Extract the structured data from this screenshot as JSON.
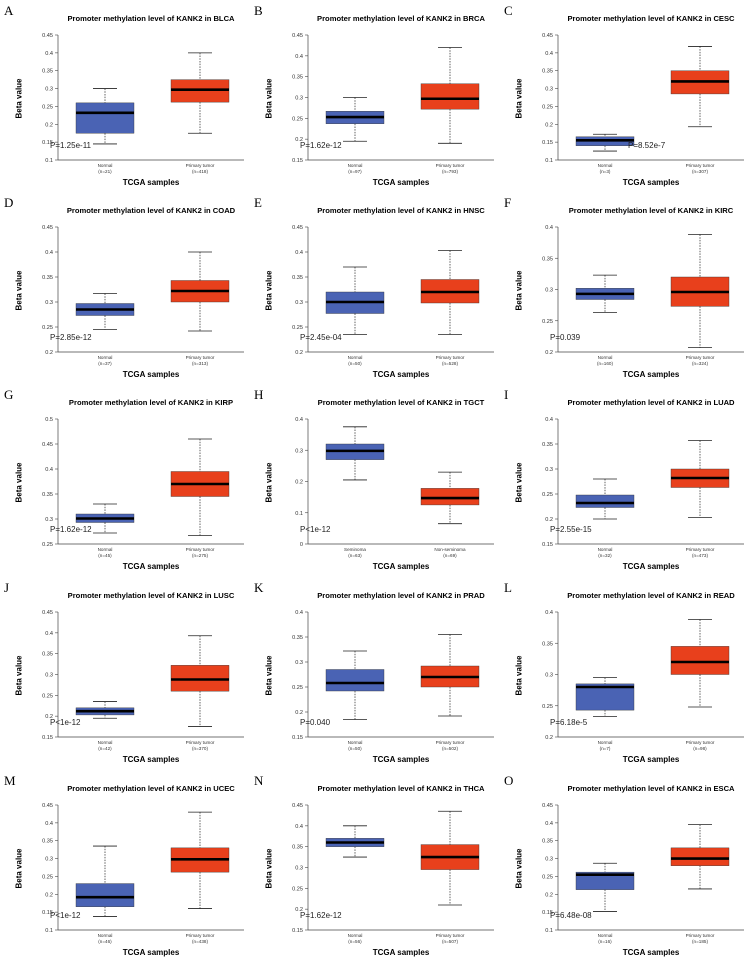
{
  "x_axis_label": "TCGA samples",
  "y_axis_label": "Beta value",
  "colors": {
    "normal": "#4a63b4",
    "tumor": "#e8401c",
    "median": "#000000"
  },
  "chart_data": [
    {
      "label": "A",
      "type": "boxplot",
      "title": "Promoter methylation level of KANK2 in BLCA",
      "ylim": [
        0.1,
        0.45
      ],
      "yticks": [
        "0.1",
        "0.15",
        "0.2",
        "0.25",
        "0.3",
        "0.35",
        "0.4",
        "0.45"
      ],
      "p_value": "P=1.25e-11",
      "groups": [
        {
          "name": "Normal",
          "n": "(n=21)",
          "min": 0.145,
          "q1": 0.175,
          "median": 0.232,
          "q3": 0.26,
          "max": 0.3
        },
        {
          "name": "Primary tumor",
          "n": "(n=418)",
          "min": 0.175,
          "q1": 0.262,
          "median": 0.297,
          "q3": 0.325,
          "max": 0.4
        }
      ]
    },
    {
      "label": "B",
      "type": "boxplot",
      "title": "Promoter methylation level of KANK2 in BRCA",
      "ylim": [
        0.15,
        0.45
      ],
      "yticks": [
        "0.15",
        "0.2",
        "0.25",
        "0.3",
        "0.35",
        "0.4",
        "0.45"
      ],
      "p_value": "P=1.62e-12",
      "groups": [
        {
          "name": "Normal",
          "n": "(n=97)",
          "min": 0.195,
          "q1": 0.237,
          "median": 0.253,
          "q3": 0.267,
          "max": 0.3
        },
        {
          "name": "Primary tumor",
          "n": "(n=793)",
          "min": 0.19,
          "q1": 0.272,
          "median": 0.297,
          "q3": 0.333,
          "max": 0.42
        }
      ]
    },
    {
      "label": "C",
      "type": "boxplot",
      "title": "Promoter methylation level of KANK2 in CESC",
      "ylim": [
        0.1,
        0.45
      ],
      "yticks": [
        "0.1",
        "0.15",
        "0.2",
        "0.25",
        "0.3",
        "0.35",
        "0.4",
        "0.45"
      ],
      "p_value": "P=8.52e-7",
      "groups": [
        {
          "name": "Normal",
          "n": "(n=3)",
          "min": 0.125,
          "q1": 0.14,
          "median": 0.155,
          "q3": 0.165,
          "max": 0.172
        },
        {
          "name": "Primary tumor",
          "n": "(n=307)",
          "min": 0.193,
          "q1": 0.285,
          "median": 0.32,
          "q3": 0.35,
          "max": 0.418
        }
      ]
    },
    {
      "label": "D",
      "type": "boxplot",
      "title": "Promoter methylation level of KANK2 in COAD",
      "ylim": [
        0.2,
        0.45
      ],
      "yticks": [
        "0.2",
        "0.25",
        "0.3",
        "0.35",
        "0.4",
        "0.45"
      ],
      "p_value": "P=2.85e-12",
      "groups": [
        {
          "name": "Normal",
          "n": "(n=37)",
          "min": 0.245,
          "q1": 0.273,
          "median": 0.285,
          "q3": 0.297,
          "max": 0.317
        },
        {
          "name": "Primary tumor",
          "n": "(n=313)",
          "min": 0.242,
          "q1": 0.3,
          "median": 0.322,
          "q3": 0.343,
          "max": 0.4
        }
      ]
    },
    {
      "label": "E",
      "type": "boxplot",
      "title": "Promoter methylation level of KANK2 in HNSC",
      "ylim": [
        0.2,
        0.45
      ],
      "yticks": [
        "0.2",
        "0.25",
        "0.3",
        "0.35",
        "0.4",
        "0.45"
      ],
      "p_value": "P=2.45e-04",
      "groups": [
        {
          "name": "Normal",
          "n": "(n=50)",
          "min": 0.235,
          "q1": 0.277,
          "median": 0.3,
          "q3": 0.32,
          "max": 0.37
        },
        {
          "name": "Primary tumor",
          "n": "(n=528)",
          "min": 0.235,
          "q1": 0.298,
          "median": 0.32,
          "q3": 0.345,
          "max": 0.403
        }
      ]
    },
    {
      "label": "F",
      "type": "boxplot",
      "title": "Promoter methylation level of KANK2 in KIRC",
      "ylim": [
        0.2,
        0.4
      ],
      "yticks": [
        "0.2",
        "0.25",
        "0.3",
        "0.35",
        "0.4"
      ],
      "p_value": "P=0.039",
      "groups": [
        {
          "name": "Normal",
          "n": "(n=160)",
          "min": 0.263,
          "q1": 0.284,
          "median": 0.293,
          "q3": 0.302,
          "max": 0.323
        },
        {
          "name": "Primary tumor",
          "n": "(n=324)",
          "min": 0.207,
          "q1": 0.273,
          "median": 0.296,
          "q3": 0.32,
          "max": 0.388
        }
      ]
    },
    {
      "label": "G",
      "type": "boxplot",
      "title": "Promoter methylation level of KANK2 in KIRP",
      "ylim": [
        0.25,
        0.5
      ],
      "yticks": [
        "0.25",
        "0.3",
        "0.35",
        "0.4",
        "0.45",
        "0.5"
      ],
      "p_value": "P=1.62e-12",
      "groups": [
        {
          "name": "Normal",
          "n": "(n=45)",
          "min": 0.272,
          "q1": 0.293,
          "median": 0.301,
          "q3": 0.31,
          "max": 0.33
        },
        {
          "name": "Primary tumor",
          "n": "(n=275)",
          "min": 0.267,
          "q1": 0.345,
          "median": 0.37,
          "q3": 0.395,
          "max": 0.46
        }
      ]
    },
    {
      "label": "H",
      "type": "boxplot",
      "title": "Promoter methylation level of KANK2 in TGCT",
      "ylim": [
        0,
        0.4
      ],
      "yticks": [
        "0",
        "0.1",
        "0.2",
        "0.3",
        "0.4"
      ],
      "p_value": "P<1e-12",
      "groups": [
        {
          "name": "Seminoma",
          "n": "(n=63)",
          "min": 0.205,
          "q1": 0.27,
          "median": 0.298,
          "q3": 0.32,
          "max": 0.375
        },
        {
          "name": "Non-seminoma",
          "n": "(n=69)",
          "min": 0.065,
          "q1": 0.125,
          "median": 0.147,
          "q3": 0.178,
          "max": 0.23
        }
      ]
    },
    {
      "label": "I",
      "type": "boxplot",
      "title": "Promoter methylation level of KANK2 in LUAD",
      "ylim": [
        0.15,
        0.4
      ],
      "yticks": [
        "0.15",
        "0.2",
        "0.25",
        "0.3",
        "0.35",
        "0.4"
      ],
      "p_value": "P=2.55e-15",
      "groups": [
        {
          "name": "Normal",
          "n": "(n=32)",
          "min": 0.2,
          "q1": 0.223,
          "median": 0.232,
          "q3": 0.248,
          "max": 0.28
        },
        {
          "name": "Primary tumor",
          "n": "(n=473)",
          "min": 0.203,
          "q1": 0.263,
          "median": 0.282,
          "q3": 0.3,
          "max": 0.357
        }
      ]
    },
    {
      "label": "J",
      "type": "boxplot",
      "title": "Promoter methylation level of KANK2 in LUSC",
      "ylim": [
        0.15,
        0.45
      ],
      "yticks": [
        "0.15",
        "0.2",
        "0.25",
        "0.3",
        "0.35",
        "0.4",
        "0.45"
      ],
      "p_value": "P<1e-12",
      "groups": [
        {
          "name": "Normal",
          "n": "(n=42)",
          "min": 0.195,
          "q1": 0.203,
          "median": 0.212,
          "q3": 0.22,
          "max": 0.235
        },
        {
          "name": "Primary tumor",
          "n": "(n=370)",
          "min": 0.175,
          "q1": 0.26,
          "median": 0.288,
          "q3": 0.322,
          "max": 0.393
        }
      ]
    },
    {
      "label": "K",
      "type": "boxplot",
      "title": "Promoter methylation level of KANK2 in PRAD",
      "ylim": [
        0.15,
        0.4
      ],
      "yticks": [
        "0.15",
        "0.2",
        "0.25",
        "0.3",
        "0.35",
        "0.4"
      ],
      "p_value": "P=0.040",
      "groups": [
        {
          "name": "Normal",
          "n": "(n=50)",
          "min": 0.185,
          "q1": 0.242,
          "median": 0.258,
          "q3": 0.285,
          "max": 0.322
        },
        {
          "name": "Primary tumor",
          "n": "(n=502)",
          "min": 0.192,
          "q1": 0.25,
          "median": 0.27,
          "q3": 0.292,
          "max": 0.355
        }
      ]
    },
    {
      "label": "L",
      "type": "boxplot",
      "title": "Promoter methylation level of KANK2 in READ",
      "ylim": [
        0.2,
        0.4
      ],
      "yticks": [
        "0.2",
        "0.25",
        "0.3",
        "0.35",
        "0.4"
      ],
      "p_value": "P=6.18e-5",
      "groups": [
        {
          "name": "Normal",
          "n": "(n=7)",
          "min": 0.233,
          "q1": 0.243,
          "median": 0.28,
          "q3": 0.285,
          "max": 0.295
        },
        {
          "name": "Primary tumor",
          "n": "(n=98)",
          "min": 0.248,
          "q1": 0.3,
          "median": 0.32,
          "q3": 0.345,
          "max": 0.388
        }
      ]
    },
    {
      "label": "M",
      "type": "boxplot",
      "title": "Promoter methylation level of KANK2 in UCEC",
      "ylim": [
        0.1,
        0.45
      ],
      "yticks": [
        "0.1",
        "0.15",
        "0.2",
        "0.25",
        "0.3",
        "0.35",
        "0.4",
        "0.45"
      ],
      "p_value": "P<1e-12",
      "groups": [
        {
          "name": "Normal",
          "n": "(n=46)",
          "min": 0.138,
          "q1": 0.165,
          "median": 0.192,
          "q3": 0.23,
          "max": 0.335
        },
        {
          "name": "Primary tumor",
          "n": "(n=438)",
          "min": 0.16,
          "q1": 0.262,
          "median": 0.298,
          "q3": 0.33,
          "max": 0.43
        }
      ]
    },
    {
      "label": "N",
      "type": "boxplot",
      "title": "Promoter methylation level of KANK2 in THCA",
      "ylim": [
        0.15,
        0.45
      ],
      "yticks": [
        "0.15",
        "0.2",
        "0.25",
        "0.3",
        "0.35",
        "0.4",
        "0.45"
      ],
      "p_value": "P=1.62e-12",
      "groups": [
        {
          "name": "Normal",
          "n": "(n=56)",
          "min": 0.325,
          "q1": 0.35,
          "median": 0.36,
          "q3": 0.37,
          "max": 0.4
        },
        {
          "name": "Primary tumor",
          "n": "(n=507)",
          "min": 0.21,
          "q1": 0.295,
          "median": 0.325,
          "q3": 0.355,
          "max": 0.435
        }
      ]
    },
    {
      "label": "O",
      "type": "boxplot",
      "title": "Promoter methylation level of KANK2 in ESCA",
      "ylim": [
        0.1,
        0.45
      ],
      "yticks": [
        "0.1",
        "0.15",
        "0.2",
        "0.25",
        "0.3",
        "0.35",
        "0.4",
        "0.45"
      ],
      "p_value": "P=6.48e-08",
      "groups": [
        {
          "name": "Normal",
          "n": "(n=16)",
          "min": 0.152,
          "q1": 0.213,
          "median": 0.255,
          "q3": 0.262,
          "max": 0.287
        },
        {
          "name": "Primary tumor",
          "n": "(n=185)",
          "min": 0.215,
          "q1": 0.28,
          "median": 0.3,
          "q3": 0.33,
          "max": 0.395
        }
      ]
    }
  ]
}
